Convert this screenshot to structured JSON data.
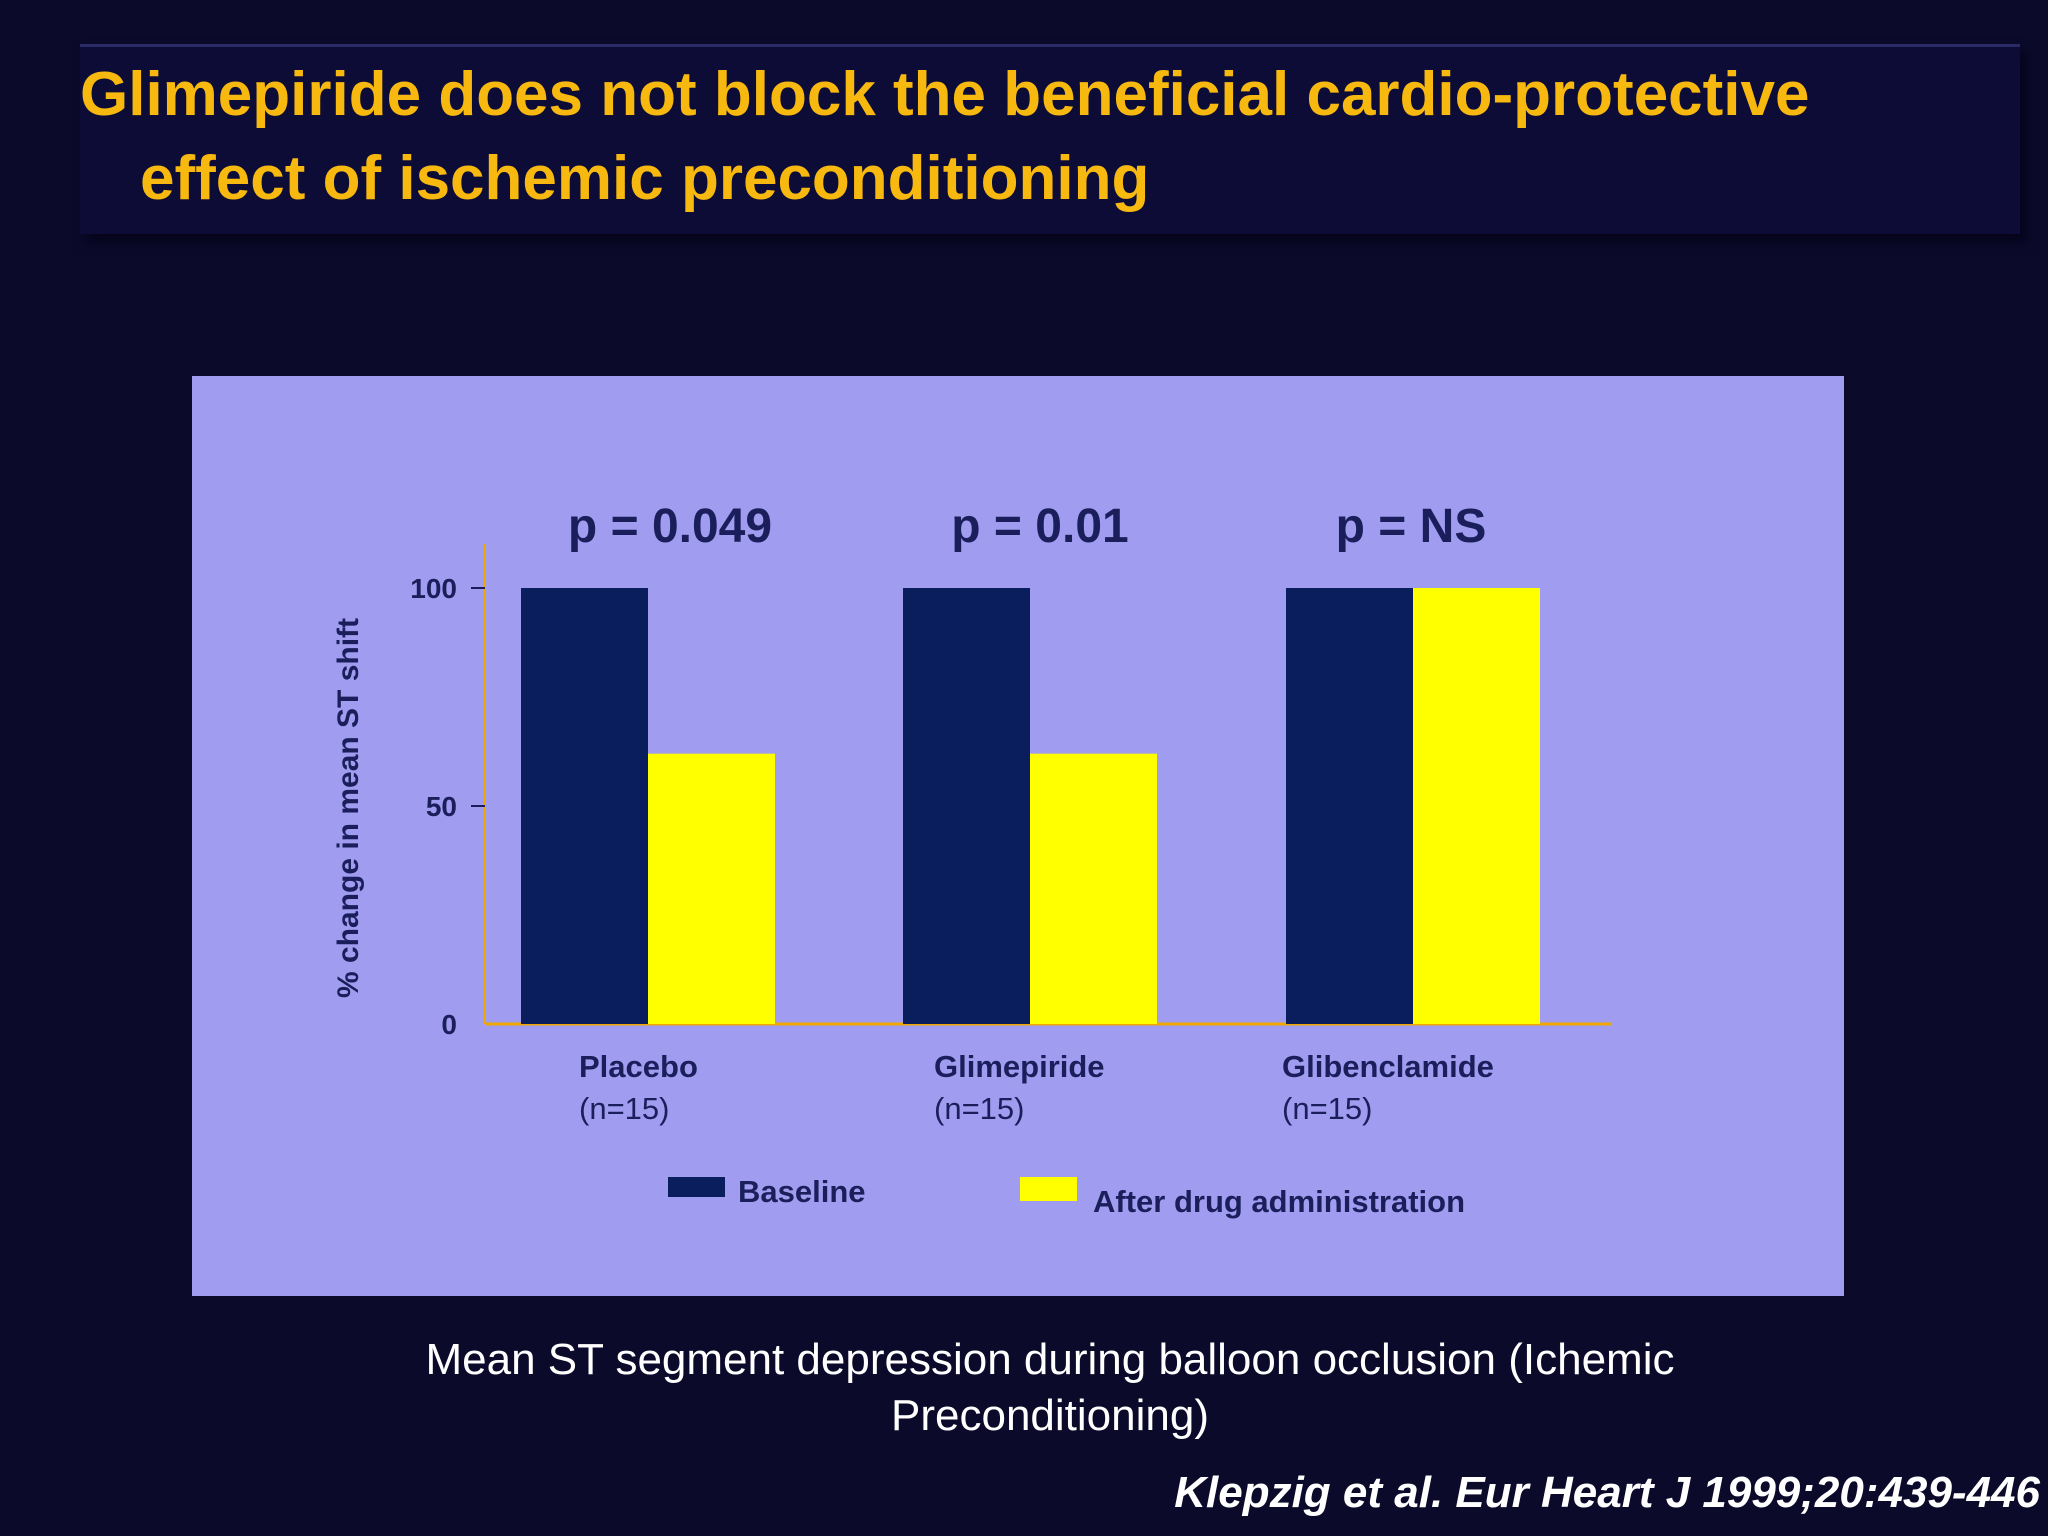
{
  "slide": {
    "title_line1": "Glimepiride does not block the beneficial cardio-protective",
    "title_line2": "effect of ischemic preconditioning",
    "caption": "Mean ST segment depression during balloon occlusion (Ichemic Preconditioning)",
    "citation": "Klepzig et al. Eur Heart J 1999;20:439-446"
  },
  "colors": {
    "title": "#f7b80f",
    "panel": "#a09cf0",
    "baseline": "#0a1e5e",
    "after": "#ffff00",
    "axis": "#f0a800",
    "label": "#1a1f5c"
  },
  "chart_data": {
    "type": "bar",
    "categories": [
      "Placebo",
      "Glimepiride",
      "Glibenclamide"
    ],
    "category_sublabels": [
      "(n=15)",
      "(n=15)",
      "(n=15)"
    ],
    "series": [
      {
        "name": "Baseline",
        "values": [
          100,
          100,
          100
        ]
      },
      {
        "name": "After drug administration",
        "values": [
          62,
          62,
          100
        ]
      }
    ],
    "annotations": [
      "p = 0.049",
      "p = 0.01",
      "p = NS"
    ],
    "ylabel": "% change in mean ST shift",
    "yticks": [
      0,
      50,
      100
    ],
    "ylim": [
      0,
      110
    ],
    "grid": false,
    "legend_position": "bottom"
  }
}
